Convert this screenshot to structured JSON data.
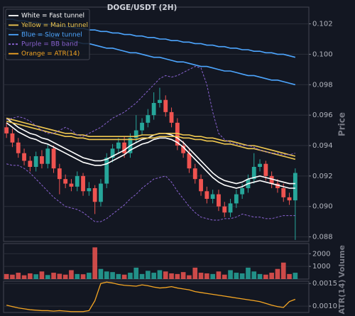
{
  "chart_data": [
    {
      "type": "candlestick",
      "title": "DOGE/USDT (2H)",
      "ylabel": "Price",
      "ylim": [
        0.0877,
        0.1031
      ],
      "yticks": [
        {
          "value": 0.088,
          "label": "0.088"
        },
        {
          "value": 0.09,
          "label": "0.090"
        },
        0.092,
        0.094,
        0.096,
        0.098,
        {
          "value": 0.1,
          "label": "0.100"
        },
        0.102
      ],
      "grid": true,
      "legend": "upper left",
      "up_color": "#26a69a",
      "down_color": "#ef5350",
      "open": [
        0.0952,
        0.0948,
        0.0942,
        0.0935,
        0.093,
        0.0926,
        0.0933,
        0.0928,
        0.0938,
        0.0925,
        0.0918,
        0.0915,
        0.0913,
        0.092,
        0.091,
        0.0912,
        0.0903,
        0.0915,
        0.0932,
        0.0938,
        0.0942,
        0.0935,
        0.0945,
        0.095,
        0.0955,
        0.096,
        0.0968,
        0.097,
        0.0962,
        0.0955,
        0.094,
        0.0935,
        0.0925,
        0.0918,
        0.091,
        0.0905,
        0.0908,
        0.09,
        0.0896,
        0.0902,
        0.0908,
        0.0912,
        0.0918,
        0.0926,
        0.0928,
        0.092,
        0.0915,
        0.0912,
        0.0906,
        0.0904
      ],
      "high": [
        0.0955,
        0.0951,
        0.0945,
        0.0938,
        0.0933,
        0.0936,
        0.0937,
        0.0941,
        0.094,
        0.0928,
        0.0921,
        0.0918,
        0.0923,
        0.0922,
        0.0916,
        0.0914,
        0.0918,
        0.0935,
        0.0941,
        0.0945,
        0.0946,
        0.0948,
        0.096,
        0.0958,
        0.0964,
        0.0975,
        0.0978,
        0.0973,
        0.0965,
        0.0958,
        0.0943,
        0.0938,
        0.0928,
        0.0921,
        0.0913,
        0.0911,
        0.0911,
        0.0903,
        0.0905,
        0.0911,
        0.0915,
        0.0921,
        0.0935,
        0.0931,
        0.093,
        0.0923,
        0.0918,
        0.0915,
        0.0909,
        0.0925
      ],
      "low": [
        0.0945,
        0.0939,
        0.0932,
        0.0927,
        0.0923,
        0.0923,
        0.0925,
        0.0925,
        0.0922,
        0.0908,
        0.0912,
        0.091,
        0.091,
        0.0907,
        0.0907,
        0.0895,
        0.09,
        0.0912,
        0.0929,
        0.0935,
        0.0932,
        0.0932,
        0.0942,
        0.0947,
        0.0952,
        0.0957,
        0.0965,
        0.0959,
        0.0952,
        0.0937,
        0.0932,
        0.0922,
        0.0915,
        0.0907,
        0.0902,
        0.0902,
        0.0897,
        0.0893,
        0.0893,
        0.0899,
        0.0905,
        0.0909,
        0.0915,
        0.0923,
        0.0917,
        0.0912,
        0.0909,
        0.0903,
        0.0901,
        0.0878
      ],
      "close": [
        0.0948,
        0.0942,
        0.0935,
        0.093,
        0.0926,
        0.0933,
        0.0928,
        0.0938,
        0.0925,
        0.0918,
        0.0915,
        0.0913,
        0.092,
        0.091,
        0.0912,
        0.0903,
        0.0915,
        0.0932,
        0.0938,
        0.0942,
        0.0935,
        0.0945,
        0.095,
        0.0955,
        0.096,
        0.0968,
        0.097,
        0.0962,
        0.0955,
        0.094,
        0.0935,
        0.0925,
        0.0918,
        0.091,
        0.0905,
        0.0908,
        0.09,
        0.0896,
        0.0902,
        0.0908,
        0.0912,
        0.0918,
        0.0926,
        0.0928,
        0.092,
        0.0915,
        0.0912,
        0.0906,
        0.0904,
        0.0922
      ],
      "lines": [
        {
          "name": "White = Fast tunnel",
          "color": "#ffffff",
          "dashed": false,
          "upper": [
            0.0958,
            0.0955,
            0.0952,
            0.095,
            0.0948,
            0.0947,
            0.0945,
            0.0944,
            0.0942,
            0.094,
            0.0938,
            0.0936,
            0.0934,
            0.0932,
            0.0931,
            0.093,
            0.093,
            0.0931,
            0.0933,
            0.0935,
            0.0937,
            0.094,
            0.0942,
            0.0944,
            0.0945,
            0.0947,
            0.0948,
            0.0948,
            0.0947,
            0.0945,
            0.0942,
            0.0938,
            0.0934,
            0.093,
            0.0926,
            0.0922,
            0.0919,
            0.0917,
            0.0916,
            0.0915,
            0.0916,
            0.0918,
            0.0919,
            0.092,
            0.0919,
            0.0918,
            0.0917,
            0.0916,
            0.0915,
            0.0915
          ],
          "lower": [
            0.0955,
            0.0952,
            0.0949,
            0.0947,
            0.0945,
            0.0944,
            0.0942,
            0.0941,
            0.0939,
            0.0937,
            0.0935,
            0.0933,
            0.0931,
            0.0929,
            0.0928,
            0.0927,
            0.0927,
            0.0928,
            0.093,
            0.0932,
            0.0934,
            0.0937,
            0.0939,
            0.0941,
            0.0942,
            0.0944,
            0.0945,
            0.0945,
            0.0944,
            0.0942,
            0.0939,
            0.0935,
            0.0931,
            0.0927,
            0.0923,
            0.0919,
            0.0916,
            0.0914,
            0.0913,
            0.0912,
            0.0913,
            0.0915,
            0.0916,
            0.0917,
            0.0916,
            0.0915,
            0.0914,
            0.0913,
            0.0912,
            0.0912
          ]
        },
        {
          "name": "Yellow = Main tunnel",
          "color": "#f0c850",
          "dashed": false,
          "upper": [
            0.0958,
            0.0957,
            0.0956,
            0.0955,
            0.0954,
            0.0953,
            0.0952,
            0.0951,
            0.095,
            0.0949,
            0.0948,
            0.0948,
            0.0947,
            0.0947,
            0.0946,
            0.0946,
            0.0946,
            0.0946,
            0.0946,
            0.0946,
            0.0946,
            0.0946,
            0.0946,
            0.0947,
            0.0947,
            0.0947,
            0.0948,
            0.0948,
            0.0948,
            0.0948,
            0.0947,
            0.0947,
            0.0946,
            0.0946,
            0.0945,
            0.0945,
            0.0944,
            0.0943,
            0.0943,
            0.0942,
            0.0941,
            0.094,
            0.094,
            0.0939,
            0.0938,
            0.0937,
            0.0936,
            0.0935,
            0.0934,
            0.0933
          ],
          "lower": [
            0.0956,
            0.0955,
            0.0954,
            0.0953,
            0.0952,
            0.0951,
            0.095,
            0.0949,
            0.0948,
            0.0947,
            0.0946,
            0.0946,
            0.0945,
            0.0945,
            0.0944,
            0.0944,
            0.0944,
            0.0944,
            0.0944,
            0.0944,
            0.0944,
            0.0944,
            0.0944,
            0.0945,
            0.0945,
            0.0945,
            0.0946,
            0.0946,
            0.0946,
            0.0946,
            0.0945,
            0.0945,
            0.0944,
            0.0944,
            0.0943,
            0.0943,
            0.0942,
            0.0941,
            0.0941,
            0.094,
            0.0939,
            0.0938,
            0.0938,
            0.0937,
            0.0936,
            0.0935,
            0.0934,
            0.0933,
            0.0932,
            0.0931
          ]
        },
        {
          "name": "Blue = Slow tunnel",
          "color": "#4da6ff",
          "dashed": false,
          "upper": [
            0.1023,
            0.1023,
            0.1022,
            0.1022,
            0.1021,
            0.1021,
            0.102,
            0.102,
            0.1019,
            0.1019,
            0.1018,
            0.1018,
            0.1017,
            0.1017,
            0.1016,
            0.1016,
            0.1015,
            0.1015,
            0.1014,
            0.1014,
            0.1013,
            0.1013,
            0.1012,
            0.1012,
            0.1011,
            0.1011,
            0.101,
            0.101,
            0.1009,
            0.1009,
            0.1008,
            0.1008,
            0.1007,
            0.1007,
            0.1006,
            0.1006,
            0.1005,
            0.1005,
            0.1004,
            0.1004,
            0.1003,
            0.1003,
            0.1002,
            0.1002,
            0.1001,
            0.1001,
            0.1,
            0.1,
            0.0999,
            0.0998
          ],
          "lower": [
            0.1017,
            0.1016,
            0.1016,
            0.1015,
            0.1014,
            0.1013,
            0.1013,
            0.1012,
            0.1011,
            0.101,
            0.101,
            0.1009,
            0.1008,
            0.1007,
            0.1007,
            0.1006,
            0.1005,
            0.1004,
            0.1004,
            0.1003,
            0.1002,
            0.1001,
            0.1001,
            0.1,
            0.0999,
            0.0998,
            0.0998,
            0.0997,
            0.0996,
            0.0995,
            0.0995,
            0.0994,
            0.0993,
            0.0992,
            0.0992,
            0.0991,
            0.099,
            0.0989,
            0.0989,
            0.0988,
            0.0987,
            0.0986,
            0.0986,
            0.0985,
            0.0984,
            0.0983,
            0.0983,
            0.0982,
            0.0981,
            0.098
          ]
        },
        {
          "name": "Purple = BB band",
          "color": "#8a63d2",
          "dashed": true,
          "upper": [
            0.0957,
            0.0958,
            0.0959,
            0.0958,
            0.0956,
            0.0953,
            0.095,
            0.0948,
            0.0948,
            0.095,
            0.0952,
            0.095,
            0.0947,
            0.0946,
            0.0948,
            0.095,
            0.0952,
            0.0955,
            0.0958,
            0.096,
            0.0962,
            0.0965,
            0.0968,
            0.0972,
            0.0976,
            0.098,
            0.0984,
            0.0986,
            0.0985,
            0.0986,
            0.0988,
            0.099,
            0.0992,
            0.0991,
            0.098,
            0.0962,
            0.0948,
            0.0944,
            0.0942,
            0.0941,
            0.094,
            0.094,
            0.0939,
            0.0937,
            0.0936,
            0.0935,
            0.0935,
            0.0934,
            0.0934,
            0.0935
          ],
          "lower": [
            0.0928,
            0.0927,
            0.0927,
            0.0925,
            0.0922,
            0.0918,
            0.0914,
            0.091,
            0.0906,
            0.0903,
            0.09,
            0.0899,
            0.0898,
            0.0896,
            0.0893,
            0.089,
            0.089,
            0.0892,
            0.0895,
            0.0898,
            0.0901,
            0.0905,
            0.0908,
            0.0912,
            0.0915,
            0.0918,
            0.0919,
            0.092,
            0.0916,
            0.091,
            0.0905,
            0.09,
            0.0896,
            0.0893,
            0.0892,
            0.0891,
            0.0891,
            0.0892,
            0.0892,
            0.0893,
            0.0895,
            0.0894,
            0.0893,
            0.0893,
            0.0892,
            0.0892,
            0.0893,
            0.0894,
            0.0894,
            0.0894
          ]
        }
      ]
    },
    {
      "type": "bar",
      "ylabel": "Volume",
      "ylim": [
        0,
        2800
      ],
      "yticks": [
        1000,
        2000
      ],
      "grid": true,
      "values": [
        400,
        350,
        500,
        300,
        450,
        380,
        600,
        320,
        500,
        420,
        350,
        700,
        400,
        380,
        500,
        2500,
        800,
        600,
        550,
        400,
        350,
        500,
        900,
        400,
        650,
        500,
        700,
        600,
        450,
        400,
        550,
        300,
        900,
        500,
        450,
        400,
        600,
        350,
        700,
        500,
        450,
        900,
        600,
        400,
        350,
        500,
        800,
        1300,
        400,
        500
      ]
    },
    {
      "type": "line",
      "ylabel": "ATR(14)",
      "ylim": [
        0.00086,
        0.00155
      ],
      "yticks": [
        {
          "value": 0.001,
          "label": "0.0010"
        },
        0.0015
      ],
      "grid": true,
      "series": [
        {
          "name": "Orange = ATR(14)",
          "color": "#f5a623",
          "values": [
            0.00102,
            0.00099,
            0.00096,
            0.00094,
            0.00092,
            0.00091,
            0.0009,
            0.0009,
            0.00089,
            0.0009,
            0.00089,
            0.00088,
            0.00088,
            0.00088,
            0.0009,
            0.00112,
            0.0015,
            0.00153,
            0.00151,
            0.00148,
            0.00146,
            0.00145,
            0.00144,
            0.00147,
            0.00145,
            0.00142,
            0.0014,
            0.00141,
            0.00143,
            0.0014,
            0.00138,
            0.00136,
            0.00132,
            0.0013,
            0.00128,
            0.00126,
            0.00124,
            0.00122,
            0.0012,
            0.00118,
            0.00116,
            0.00114,
            0.00112,
            0.0011,
            0.00106,
            0.00102,
            0.00099,
            0.00097,
            0.0011,
            0.00115
          ]
        }
      ]
    }
  ]
}
